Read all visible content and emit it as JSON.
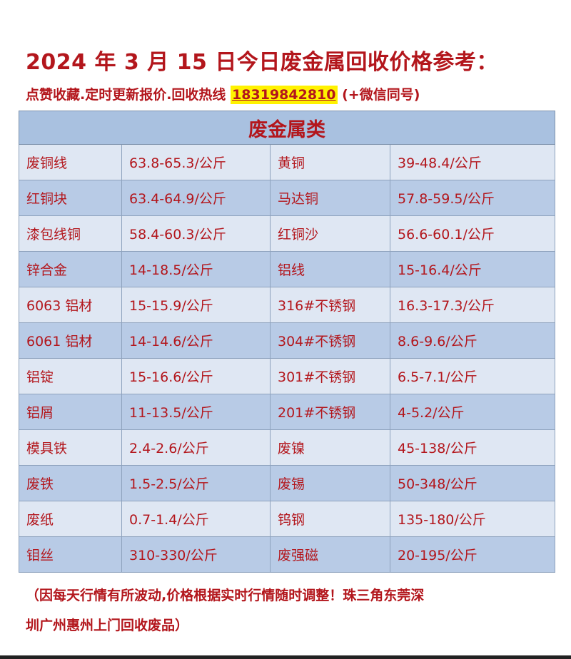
{
  "title": "2024 年 3 月 15 日今日废金属回收价格参考：",
  "subtitle_prefix": "点赞收藏.定时更新报价.回收热线 ",
  "phone": "18319842810",
  "subtitle_suffix": " (+微信同号)",
  "table": {
    "header": "废金属类",
    "rows": [
      [
        "废铜线",
        "63.8-65.3/公斤",
        "黄铜",
        "39-48.4/公斤"
      ],
      [
        "红铜块",
        "63.4-64.9/公斤",
        "马达铜",
        "57.8-59.5/公斤"
      ],
      [
        "漆包线铜",
        "58.4-60.3/公斤",
        "红铜沙",
        "56.6-60.1/公斤"
      ],
      [
        "锌合金",
        "14-18.5/公斤",
        "铝线",
        "15-16.4/公斤"
      ],
      [
        "6063 铝材",
        "15-15.9/公斤",
        "316#不锈钢",
        "16.3-17.3/公斤"
      ],
      [
        "6061 铝材",
        "14-14.6/公斤",
        "304#不锈钢",
        "8.6-9.6/公斤"
      ],
      [
        "铝锭",
        "15-16.6/公斤",
        "301#不锈钢",
        "6.5-7.1/公斤"
      ],
      [
        "铝屑",
        "11-13.5/公斤",
        "201#不锈钢",
        "4-5.2/公斤"
      ],
      [
        "模具铁",
        "2.4-2.6/公斤",
        "废镍",
        "45-138/公斤"
      ],
      [
        "废铁",
        "1.5-2.5/公斤",
        "废锡",
        "50-348/公斤"
      ],
      [
        "废纸",
        "0.7-1.4/公斤",
        "钨钢",
        "135-180/公斤"
      ],
      [
        "钼丝",
        "310-330/公斤",
        "废强磁",
        "20-195/公斤"
      ]
    ]
  },
  "note_line1": "（因每天行情有所波动,价格根据实时行情随时调整！珠三角东莞深",
  "note_line2": "圳广州惠州上门回收废品）",
  "colors": {
    "text": "#b3161c",
    "header_bg": "#a9c1e0",
    "row_light": "#dfe7f3",
    "row_dark": "#b8cbe6",
    "highlight": "#fff200"
  }
}
